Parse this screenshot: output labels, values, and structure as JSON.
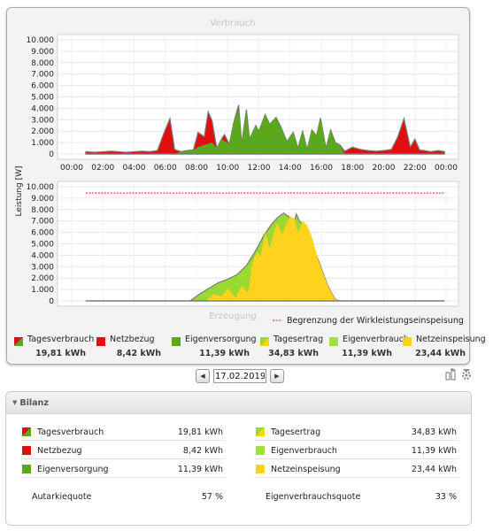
{
  "colors": {
    "red": "#e01010",
    "green": "#5aa81e",
    "light_green": "#a4e03c",
    "yellow": "#ffd21e",
    "gen_lime": "#9ad832",
    "limit_line": "#e01010"
  },
  "chart_data": [
    {
      "type": "area",
      "title": "Verbrauch",
      "ylabel": "Leistung [W]",
      "ylim": [
        0,
        10000
      ],
      "yticks": [
        "10.000",
        "9.000",
        "8.000",
        "7.000",
        "6.000",
        "5.000",
        "4.000",
        "3.000",
        "2.000",
        "1.000",
        "0"
      ],
      "xticks": [
        "00:00",
        "02:00",
        "04:00",
        "06:00",
        "08:00",
        "10:00",
        "12:00",
        "14:00",
        "16:00",
        "18:00",
        "20:00",
        "22:00",
        "00:00"
      ],
      "x_unit": "hour",
      "series": [
        {
          "name": "Tagesverbrauch",
          "x": [
            0.9,
            1.5,
            2.5,
            3.5,
            4.5,
            5.0,
            5.5,
            5.9,
            6.3,
            6.6,
            7.0,
            7.4,
            7.8,
            8.1,
            8.5,
            8.75,
            9.0,
            9.3,
            9.6,
            9.8,
            10.1,
            10.4,
            10.7,
            10.9,
            11.2,
            11.4,
            11.8,
            12.0,
            12.4,
            12.7,
            13.1,
            13.4,
            13.8,
            14.2,
            14.5,
            14.8,
            15.1,
            15.4,
            15.7,
            15.95,
            16.3,
            16.6,
            16.9,
            17.2,
            17.5,
            18.0,
            18.5,
            19.0,
            19.5,
            20.0,
            20.5,
            20.9,
            21.3,
            21.7,
            22.0,
            22.3,
            22.6,
            23.0,
            23.5,
            23.9
          ],
          "values": [
            200,
            150,
            250,
            150,
            250,
            200,
            300,
            1800,
            3100,
            400,
            200,
            300,
            350,
            1900,
            1500,
            3700,
            2900,
            500,
            1300,
            1700,
            850,
            2800,
            4300,
            900,
            3900,
            1300,
            2500,
            2000,
            3450,
            2600,
            3200,
            2400,
            1100,
            1900,
            500,
            2000,
            400,
            2100,
            1600,
            3150,
            500,
            2100,
            1000,
            800,
            250,
            600,
            400,
            300,
            250,
            300,
            400,
            1500,
            3100,
            600,
            1300,
            350,
            300,
            200,
            300,
            200
          ]
        },
        {
          "name": "Eigenversorgung",
          "x": [
            0.9,
            5.9,
            6.6,
            7.0,
            7.8,
            8.1,
            8.5,
            9.0,
            9.3,
            9.6,
            10.1,
            10.4,
            10.7,
            10.9,
            11.2,
            11.4,
            11.8,
            12.0,
            12.4,
            12.7,
            13.1,
            13.4,
            13.8,
            14.2,
            14.5,
            14.8,
            15.1,
            15.4,
            15.7,
            15.95,
            16.3,
            16.6,
            16.9,
            17.2,
            17.5,
            23.9
          ],
          "values": [
            0,
            0,
            0,
            200,
            350,
            600,
            800,
            1000,
            500,
            1300,
            850,
            2800,
            4000,
            900,
            3700,
            1300,
            2500,
            2000,
            3450,
            2600,
            3200,
            2400,
            1100,
            1900,
            500,
            2000,
            400,
            2100,
            1600,
            3150,
            500,
            2100,
            1000,
            800,
            0,
            0
          ]
        }
      ]
    },
    {
      "type": "area",
      "title": "Erzeugung",
      "ylabel": "",
      "ylim": [
        0,
        10000
      ],
      "yticks": [
        "10.000",
        "9.000",
        "8.000",
        "7.000",
        "6.000",
        "5.000",
        "4.000",
        "3.000",
        "2.000",
        "1.000",
        "0"
      ],
      "x_unit": "hour",
      "limit": 9450,
      "limit_label": "Begrenzung der Wirkleistungseinspeisung",
      "series": [
        {
          "name": "Tagesertrag",
          "x": [
            0.9,
            7.6,
            8.2,
            8.8,
            9.4,
            10.0,
            10.6,
            11.2,
            11.8,
            12.3,
            12.8,
            13.2,
            13.6,
            13.9,
            14.2,
            14.4,
            14.6,
            14.9,
            15.2,
            15.5,
            15.8,
            16.1,
            16.4,
            16.7,
            16.9,
            17.2,
            17.5,
            17.8,
            23.9
          ],
          "values": [
            0,
            0,
            600,
            1100,
            1600,
            1900,
            2300,
            3100,
            4400,
            5700,
            6700,
            7300,
            7700,
            7400,
            6700,
            7600,
            7000,
            6600,
            5800,
            4700,
            3600,
            2500,
            1400,
            600,
            100,
            0,
            0,
            0,
            0
          ]
        },
        {
          "name": "Netzeinspeisung",
          "x": [
            0.9,
            8.6,
            9.1,
            9.6,
            10.0,
            10.5,
            10.9,
            11.3,
            11.6,
            11.9,
            12.1,
            12.4,
            12.7,
            13.0,
            13.2,
            13.5,
            13.7,
            14.0,
            14.3,
            14.5,
            14.8,
            15.1,
            15.4,
            15.8,
            16.1,
            16.4,
            16.7,
            16.9,
            17.2,
            23.9
          ],
          "values": [
            0,
            0,
            600,
            400,
            1100,
            300,
            1300,
            700,
            3400,
            4300,
            3900,
            6000,
            4600,
            6200,
            6800,
            5800,
            6600,
            7400,
            7200,
            6000,
            7000,
            6600,
            5600,
            3600,
            2500,
            1400,
            600,
            100,
            0,
            0
          ]
        }
      ]
    }
  ],
  "legend": [
    {
      "label": "Tagesverbrauch",
      "value": "19,81 kWh",
      "swatch": "diag-red-green"
    },
    {
      "label": "Netzbezug",
      "value": "8,42 kWh",
      "swatch": "red"
    },
    {
      "label": "Eigenversorgung",
      "value": "11,39 kWh",
      "swatch": "green"
    },
    {
      "label": "Tagesertrag",
      "value": "34,83 kWh",
      "swatch": "diag-yellow-green"
    },
    {
      "label": "Eigenverbrauch",
      "value": "11,39 kWh",
      "swatch": "light_green"
    },
    {
      "label": "Netzeinspeisung",
      "value": "23,44 kWh",
      "swatch": "yellow"
    }
  ],
  "date_nav": {
    "prev_icon": "arrow-left-icon",
    "date": "17.02.2019",
    "next_icon": "arrow-right-icon"
  },
  "tools": [
    "export-icon",
    "settings-icon"
  ],
  "bilanz": {
    "title": "Bilanz",
    "left": [
      {
        "label": "Tagesverbrauch",
        "value": "19,81 kWh",
        "swatch": "diag-red-green"
      },
      {
        "label": "Netzbezug",
        "value": "8,42 kWh",
        "swatch": "red"
      },
      {
        "label": "Eigenversorgung",
        "value": "11,39 kWh",
        "swatch": "green"
      }
    ],
    "right": [
      {
        "label": "Tagesertrag",
        "value": "34,83 kWh",
        "swatch": "diag-yellow-green"
      },
      {
        "label": "Eigenverbrauch",
        "value": "11,39 kWh",
        "swatch": "light_green"
      },
      {
        "label": "Netzeinspeisung",
        "value": "23,44 kWh",
        "swatch": "yellow"
      }
    ],
    "left_quote": {
      "label": "Autarkiequote",
      "value": "57 %"
    },
    "right_quote": {
      "label": "Eigenverbrauchsquote",
      "value": "33 %"
    }
  }
}
